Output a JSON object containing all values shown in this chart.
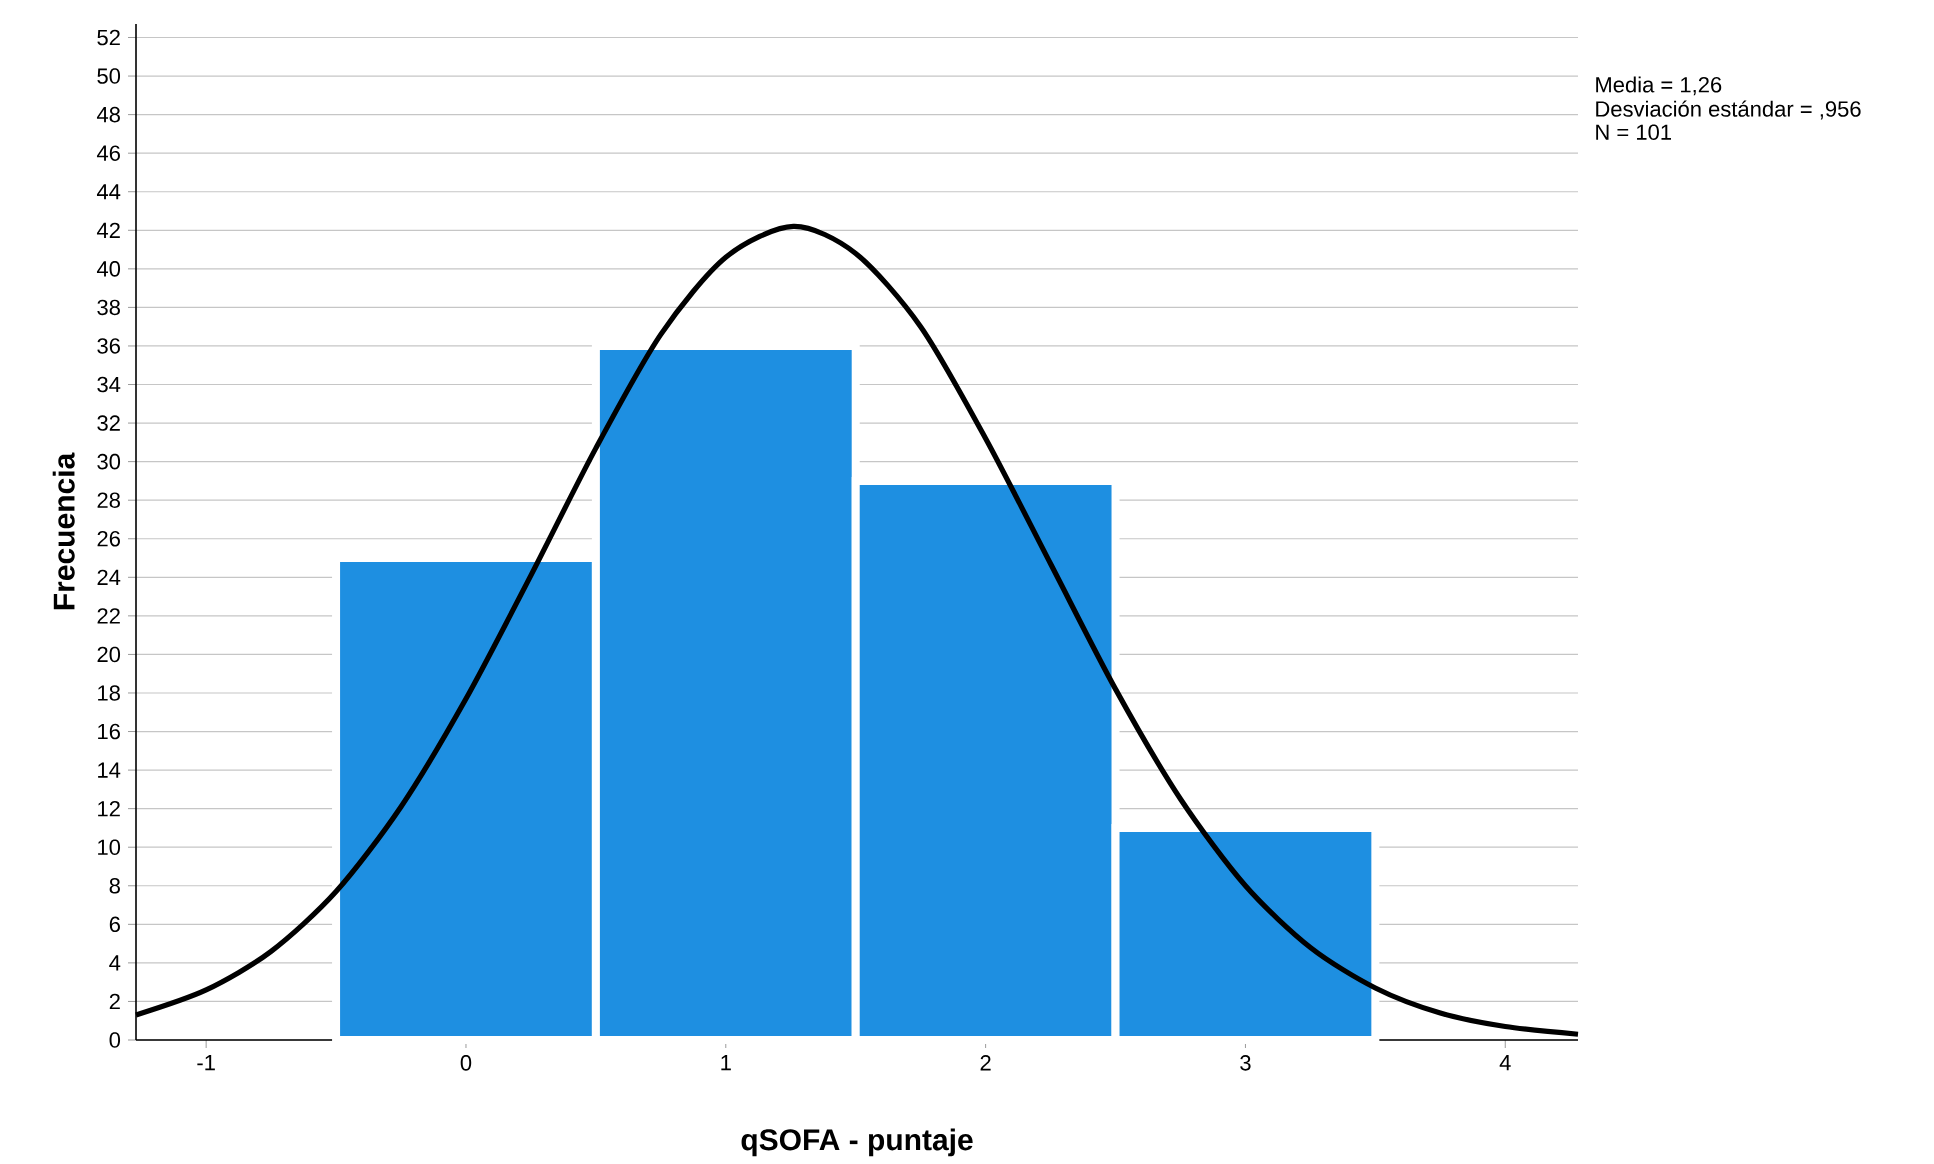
{
  "chart_data": {
    "type": "histogram",
    "xlabel": "qSOFA - puntaje",
    "ylabel": "Frecuencia",
    "bins": [
      -0.5,
      0.5,
      1.5,
      2.5,
      3.5
    ],
    "values": [
      25,
      36,
      29,
      11
    ],
    "color": "#1e8fe1",
    "series": [
      {
        "type": "line",
        "color": "#000000",
        "x": [
          -1.27,
          -1,
          -0.75,
          -0.5,
          -0.25,
          0,
          0.25,
          0.5,
          0.75,
          1,
          1.26,
          1.5,
          1.75,
          2,
          2.25,
          2.5,
          2.75,
          3,
          3.25,
          3.5,
          3.75,
          4,
          4.28
        ],
        "values": [
          1.3,
          2.6,
          4.6,
          7.7,
          12.1,
          17.7,
          24.1,
          30.7,
          36.6,
          40.6,
          42.2,
          40.8,
          37,
          31.2,
          24.7,
          18.2,
          12.5,
          8,
          4.8,
          2.7,
          1.4,
          0.7,
          0.3
        ]
      }
    ],
    "xlim": [
      -1.27,
      4.28
    ],
    "xticks": [
      -1,
      0,
      1,
      2,
      3,
      4
    ],
    "ylim": [
      0,
      52.7
    ],
    "yticks": [
      0,
      2,
      4,
      6,
      8,
      10,
      12,
      14,
      16,
      18,
      20,
      22,
      24,
      26,
      28,
      30,
      32,
      34,
      36,
      38,
      40,
      42,
      44,
      46,
      48,
      50,
      52
    ],
    "grid": "y",
    "annotations": [
      "Media = 1,26",
      "Desviación estándar = ,956",
      "N = 101"
    ]
  }
}
